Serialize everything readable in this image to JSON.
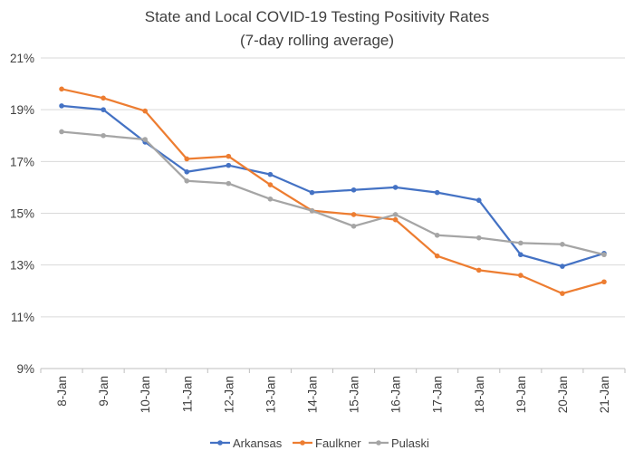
{
  "chart_data": {
    "type": "line",
    "title": "State and Local COVID-19 Testing Positivity Rates",
    "subtitle": "(7-day rolling average)",
    "xlabel": "",
    "ylabel": "",
    "categories": [
      "8-Jan",
      "9-Jan",
      "10-Jan",
      "11-Jan",
      "12-Jan",
      "13-Jan",
      "14-Jan",
      "15-Jan",
      "16-Jan",
      "17-Jan",
      "18-Jan",
      "19-Jan",
      "20-Jan",
      "21-Jan"
    ],
    "ylim": [
      9,
      21
    ],
    "yticks": [
      9,
      11,
      13,
      15,
      17,
      19,
      21
    ],
    "ytick_labels": [
      "9%",
      "11%",
      "13%",
      "15%",
      "17%",
      "19%",
      "21%"
    ],
    "grid": true,
    "legend_position": "bottom",
    "series": [
      {
        "name": "Arkansas",
        "color": "#4472c4",
        "values": [
          19.15,
          19.0,
          17.75,
          16.6,
          16.85,
          16.5,
          15.8,
          15.9,
          16.0,
          15.8,
          15.5,
          13.4,
          12.95,
          13.45
        ]
      },
      {
        "name": "Faulkner",
        "color": "#ed7d31",
        "values": [
          19.8,
          19.45,
          18.95,
          17.1,
          17.2,
          16.1,
          15.1,
          14.95,
          14.75,
          13.35,
          12.8,
          12.6,
          11.9,
          12.35
        ]
      },
      {
        "name": "Pulaski",
        "color": "#a5a5a5",
        "values": [
          18.15,
          18.0,
          17.85,
          16.25,
          16.15,
          15.55,
          15.1,
          14.5,
          14.95,
          14.15,
          14.05,
          13.85,
          13.8,
          13.4
        ]
      }
    ]
  }
}
